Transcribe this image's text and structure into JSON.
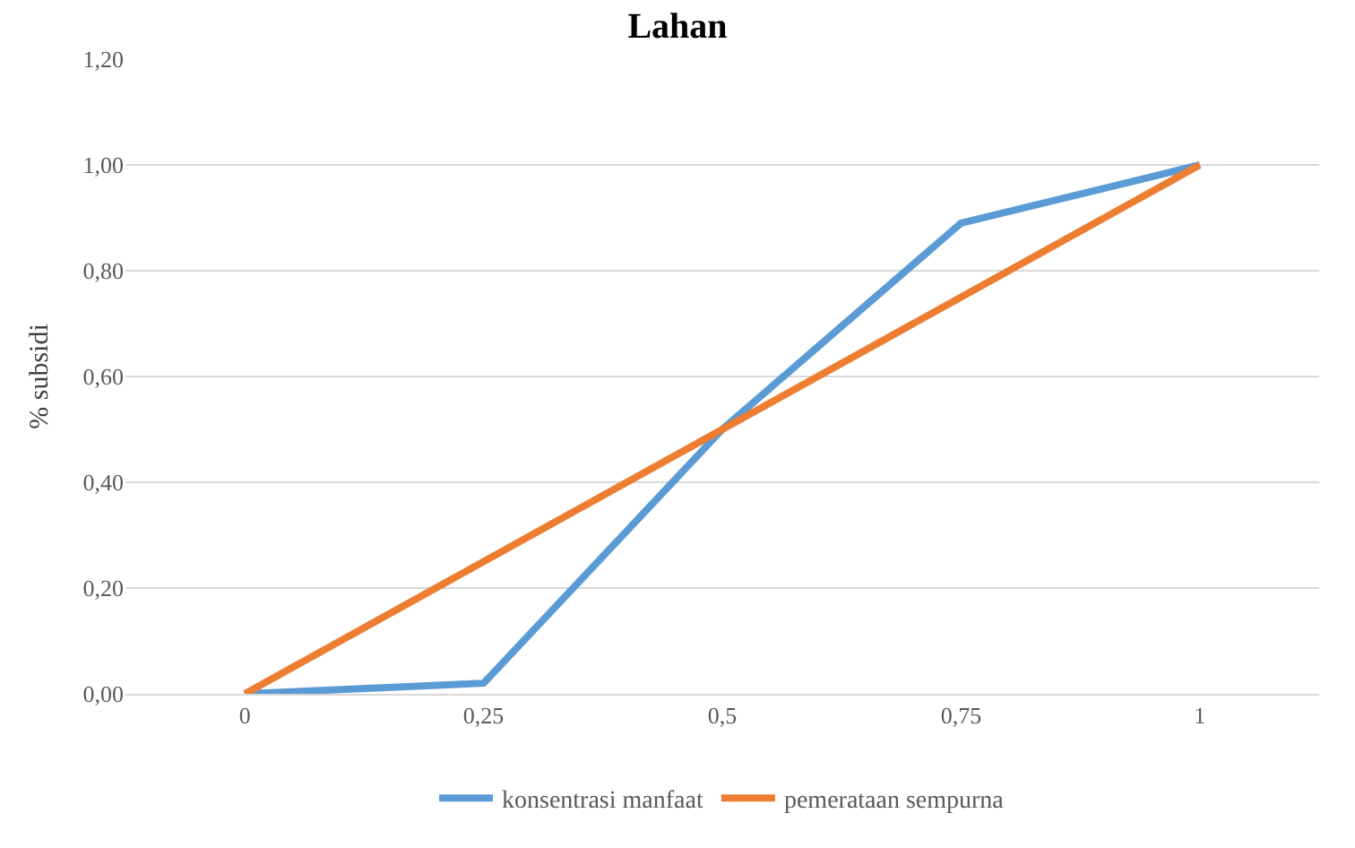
{
  "chart_data": {
    "type": "line",
    "title": "Lahan",
    "ylabel": "% subsidi",
    "categories": [
      "0",
      "0,25",
      "0,5",
      "0,75",
      "1"
    ],
    "series": [
      {
        "name": "konsentrasi manfaat",
        "color": "#5b9bd5",
        "values": [
          0,
          0.02,
          0.5,
          0.89,
          1.0
        ]
      },
      {
        "name": "pemerataan sempurna",
        "color": "#ed7d31",
        "values": [
          0,
          0.25,
          0.5,
          0.75,
          1.0
        ]
      }
    ],
    "ylim": [
      0,
      1.2
    ],
    "yticks": [
      {
        "value": 0,
        "label": "0,00"
      },
      {
        "value": 0.2,
        "label": "0,20"
      },
      {
        "value": 0.4,
        "label": "0,40"
      },
      {
        "value": 0.6,
        "label": "0,60"
      },
      {
        "value": 0.8,
        "label": "0,80"
      },
      {
        "value": 1.0,
        "label": "1,00"
      },
      {
        "value": 1.2,
        "label": "1,20"
      }
    ],
    "grid": "y",
    "legend": "bottom",
    "marker": "none",
    "line_style": "solid"
  }
}
